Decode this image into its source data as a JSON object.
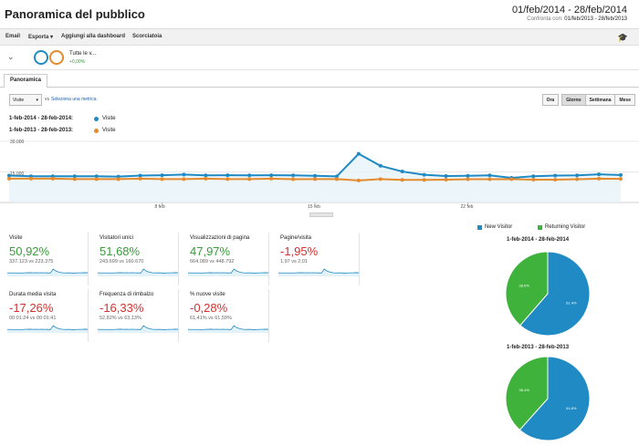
{
  "header": {
    "title": "Panoramica del pubblico",
    "date_range": "01/feb/2014 - 28/feb/2014",
    "compare_label": "Confronta con:",
    "compare_range": "01/feb/2013 - 28/feb/2013"
  },
  "toolbar": {
    "email": "Email",
    "export": "Esporta",
    "add_dashboard": "Aggiungi alla dashboard",
    "shortcut": "Scorciatoia",
    "cap_icon": "graduation-cap-icon"
  },
  "segment": {
    "label": "Tutte le v...",
    "pct": "+0,00%",
    "color_primary": "#1f8ac3",
    "color_compare": "#e68a2e"
  },
  "tabs": [
    "Panoramica"
  ],
  "controls": {
    "metric": "Visite",
    "vs": "vs",
    "select_metric": "Seleziona una metrica",
    "granularity": [
      "Ora",
      "Giorno",
      "Settimana",
      "Mese"
    ],
    "active_granularity": "Giorno"
  },
  "legend": [
    {
      "range": "1-feb-2014 - 28-feb-2014:",
      "metric": "Visite",
      "color": "#1f8ac3"
    },
    {
      "range": "1-feb-2013 - 28-feb-2013:",
      "metric": "Visite",
      "color": "#e68a2e"
    }
  ],
  "chart_data": {
    "type": "line",
    "ylim": [
      0,
      30000
    ],
    "y_ticks": [
      "30.000",
      "15.000"
    ],
    "x_tick_labels": [
      {
        "label": "8 feb",
        "index": 7
      },
      {
        "label": "15 feb",
        "index": 14
      },
      {
        "label": "22 feb",
        "index": 21
      }
    ],
    "series": [
      {
        "name": "1-feb-2014 - 28-feb-2014",
        "color": "#1f8ac3",
        "values": [
          13200,
          12900,
          12900,
          12900,
          12900,
          12700,
          13200,
          13400,
          13700,
          13300,
          13400,
          13300,
          13400,
          13300,
          13100,
          12800,
          23900,
          18000,
          15200,
          13600,
          13000,
          13100,
          13300,
          12100,
          12900,
          13200,
          13300,
          13800,
          13500
        ]
      },
      {
        "name": "1-feb-2013 - 28-feb-2013",
        "color": "#e68a2e",
        "values": [
          11700,
          11700,
          11700,
          11500,
          11500,
          11500,
          11700,
          11500,
          11500,
          11700,
          11500,
          11500,
          11700,
          11400,
          11500,
          11500,
          10800,
          11500,
          11100,
          11100,
          11200,
          11400,
          11400,
          11500,
          11200,
          11200,
          11400,
          11700,
          11600
        ]
      }
    ]
  },
  "scorecards": [
    {
      "title": "Visite",
      "value": "50,92%",
      "sign": "pos",
      "sub": "337.123 vs 223.375"
    },
    {
      "title": "Visitatori unici",
      "value": "51,68%",
      "sign": "pos",
      "sub": "243.699 vs 160.670"
    },
    {
      "title": "Visualizzazioni di pagina",
      "value": "47,97%",
      "sign": "pos",
      "sub": "664.089 vs 448.792"
    },
    {
      "title": "Pagine/visita",
      "value": "-1,95%",
      "sign": "neg",
      "sub": "1,97 vs 2,01"
    },
    {
      "title": "Durata media visita",
      "value": "-17,26%",
      "sign": "neg",
      "sub": "00:01:24 vs 00:01:41"
    },
    {
      "title": "Frequenza di rimbalzo",
      "value": "-16,33%",
      "sign": "neg",
      "sub": "52,82% vs 63,13%"
    },
    {
      "title": "% nuove visite",
      "value": "-0,28%",
      "sign": "neg",
      "sub": "61,41% vs 61,59%"
    }
  ],
  "pie_legend": [
    {
      "name": "New Visitor",
      "color": "#1f8ac3"
    },
    {
      "name": "Returning Visitor",
      "color": "#3fb23b"
    }
  ],
  "pies": [
    {
      "title": "1-feb-2014 - 28-feb-2014",
      "new": 61.4,
      "returning": 38.6,
      "new_label": "61.4%",
      "returning_label": "38.6%"
    },
    {
      "title": "1-feb-2013 - 28-feb-2013",
      "new": 61.6,
      "returning": 38.4,
      "new_label": "61.6%",
      "returning_label": "38.4%"
    }
  ]
}
